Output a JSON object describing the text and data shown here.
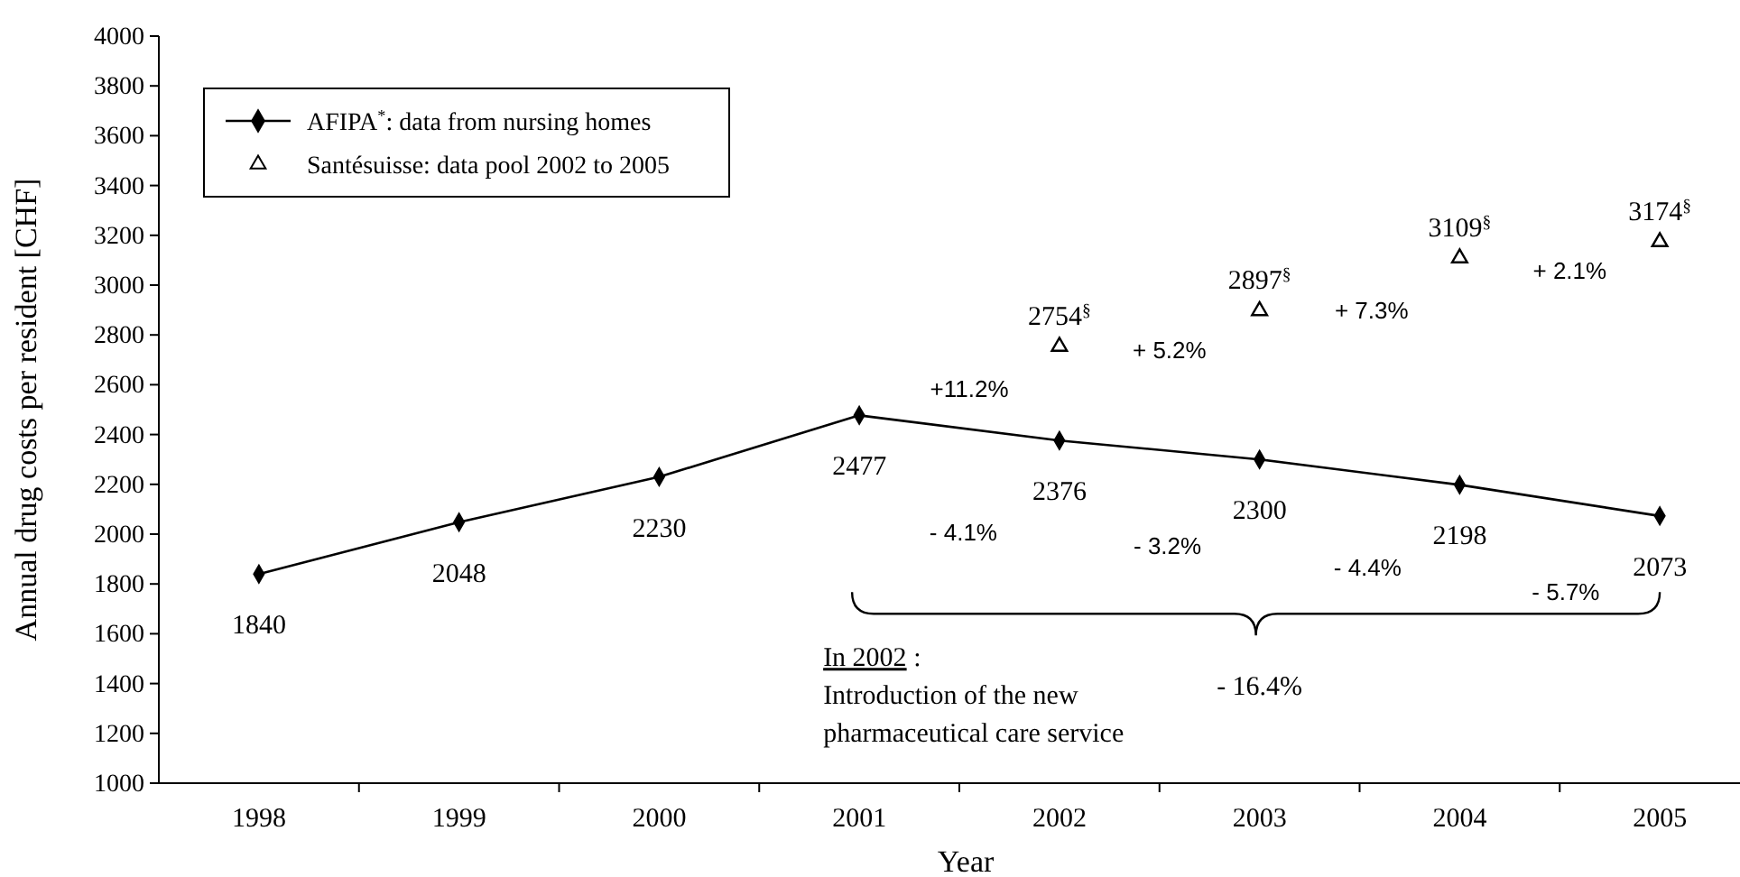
{
  "chart_data": {
    "type": "line",
    "xlabel": "Year",
    "ylabel": "Annual drug costs per resident [CHF]",
    "categories": [
      "1998",
      "1999",
      "2000",
      "2001",
      "2002",
      "2003",
      "2004",
      "2005"
    ],
    "series": [
      {
        "name": "AFIPA$^{*}$: data from nursing homes",
        "color": "#000000",
        "marker": "diamond",
        "values": [
          1840,
          2048,
          2230,
          2477,
          2376,
          2300,
          2198,
          2073
        ],
        "value_labels": [
          "1840",
          "2048",
          "2230",
          "2477",
          "2376",
          "2300",
          "2198",
          "2073"
        ]
      },
      {
        "name": "Santésuisse: data pool 2002 to 2005",
        "type": "scatter",
        "color": "#000000",
        "marker": "triangle",
        "values": [
          null,
          null,
          null,
          null,
          2754,
          2897,
          3109,
          3174
        ],
        "value_labels": [
          null,
          null,
          null,
          null,
          "2754$^{§}$",
          "2897$^{§}$",
          "3109$^{§}$",
          "3174$^{§}$"
        ]
      }
    ],
    "ylim": [
      1000,
      4000
    ],
    "yticks": [
      1000,
      1200,
      1400,
      1600,
      1800,
      2000,
      2200,
      2400,
      2600,
      2800,
      3000,
      3200,
      3400,
      3600,
      3800,
      4000
    ],
    "legend": "top left",
    "grid": false,
    "annotations": [
      "+11.2%",
      "+ 5.2%",
      "+ 7.3%",
      "+ 2.1%",
      "- 4.1%",
      "- 3.2%",
      "- 4.4%",
      "- 5.7%",
      "- 16.4%",
      "In 2002 :\nIntroduction of the new\npharmaceutical care service"
    ]
  }
}
